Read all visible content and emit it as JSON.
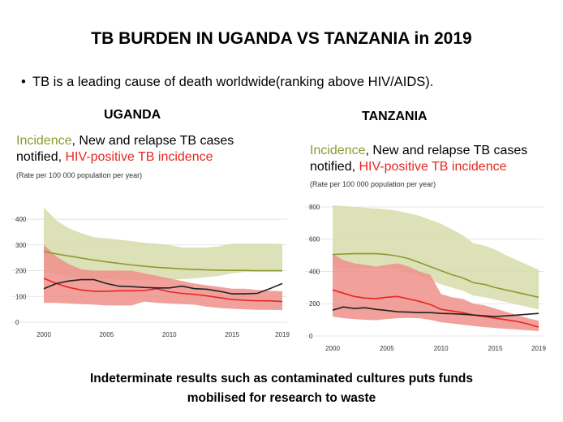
{
  "slide": {
    "title": "TB BURDEN IN UGANDA VS TANZANIA in 2019",
    "bullet": "TB is a leading cause of death worldwide(ranking above HIV/AIDS).",
    "footer_line1": "Indeterminate results such as contaminated cultures puts funds",
    "footer_line2": "mobilised for research to waste"
  },
  "legend": {
    "incidence": "Incidence",
    "middle": ", New and relapse TB cases",
    "notified": "notified, ",
    "hiv": "HIV-positive TB incidence",
    "rate": "(Rate per 100 000 population per year)"
  },
  "colors": {
    "incidence_band": "#d6dcaa",
    "incidence_line": "#8a9a2e",
    "hiv_band": "#ef8f8b",
    "hiv_line": "#e8261f",
    "notified_line": "#222222",
    "axis_text": "#333333"
  },
  "chart_data": [
    {
      "type": "line",
      "title": "UGANDA",
      "x": [
        2000,
        2001,
        2002,
        2003,
        2004,
        2005,
        2006,
        2007,
        2008,
        2009,
        2010,
        2011,
        2012,
        2013,
        2014,
        2015,
        2016,
        2017,
        2018,
        2019
      ],
      "xticks": [
        2000,
        2005,
        2010,
        2015,
        2019
      ],
      "yticks": [
        0,
        100,
        200,
        300,
        400
      ],
      "ylim": [
        0,
        460
      ],
      "series": [
        {
          "name": "Incidence",
          "values": [
            275,
            265,
            257,
            249,
            241,
            234,
            228,
            222,
            217,
            213,
            210,
            207,
            205,
            203,
            202,
            201,
            201,
            200,
            200,
            200
          ],
          "lower": [
            195,
            185,
            178,
            173,
            170,
            167,
            166,
            165,
            165,
            165,
            165,
            167,
            170,
            175,
            180,
            190,
            195,
            195,
            195,
            195
          ],
          "upper": [
            445,
            395,
            365,
            345,
            330,
            325,
            320,
            315,
            308,
            305,
            300,
            290,
            290,
            290,
            295,
            305,
            305,
            305,
            305,
            303
          ]
        },
        {
          "name": "New and relapse TB cases notified",
          "values": [
            130,
            150,
            160,
            165,
            165,
            150,
            140,
            138,
            135,
            133,
            133,
            140,
            130,
            128,
            120,
            110,
            110,
            112,
            130,
            150
          ]
        },
        {
          "name": "HIV-positive TB incidence",
          "values": [
            170,
            150,
            135,
            125,
            120,
            120,
            122,
            122,
            123,
            130,
            118,
            112,
            108,
            102,
            95,
            88,
            85,
            83,
            83,
            80
          ],
          "lower": [
            75,
            75,
            72,
            70,
            68,
            65,
            65,
            65,
            80,
            75,
            72,
            70,
            68,
            60,
            55,
            52,
            50,
            48,
            48,
            47
          ],
          "upper": [
            300,
            255,
            225,
            205,
            200,
            200,
            200,
            200,
            190,
            180,
            170,
            160,
            150,
            143,
            137,
            130,
            130,
            125,
            122,
            120
          ]
        }
      ]
    },
    {
      "type": "line",
      "title": "TANZANIA",
      "x": [
        2000,
        2001,
        2002,
        2003,
        2004,
        2005,
        2006,
        2007,
        2008,
        2009,
        2010,
        2011,
        2012,
        2013,
        2014,
        2015,
        2016,
        2017,
        2018,
        2019
      ],
      "xticks": [
        2000,
        2005,
        2010,
        2015,
        2019
      ],
      "yticks": [
        0,
        200,
        400,
        600,
        800
      ],
      "ylim": [
        0,
        830
      ],
      "series": [
        {
          "name": "Incidence",
          "values": [
            505,
            508,
            510,
            510,
            510,
            505,
            495,
            480,
            455,
            430,
            405,
            380,
            360,
            330,
            320,
            300,
            285,
            270,
            255,
            240
          ],
          "lower": [
            420,
            420,
            420,
            420,
            420,
            418,
            410,
            395,
            370,
            345,
            320,
            300,
            280,
            250,
            240,
            225,
            210,
            195,
            180,
            165
          ],
          "upper": [
            810,
            805,
            800,
            795,
            790,
            785,
            775,
            760,
            745,
            720,
            695,
            660,
            625,
            575,
            560,
            535,
            500,
            470,
            440,
            410
          ]
        },
        {
          "name": "New and relapse TB cases notified",
          "values": [
            160,
            180,
            170,
            175,
            165,
            158,
            150,
            148,
            145,
            145,
            140,
            138,
            135,
            130,
            125,
            120,
            125,
            130,
            135,
            140
          ]
        },
        {
          "name": "HIV-positive TB incidence",
          "values": [
            285,
            265,
            245,
            235,
            232,
            240,
            245,
            230,
            215,
            195,
            165,
            155,
            145,
            130,
            120,
            110,
            100,
            90,
            75,
            55
          ],
          "lower": [
            120,
            110,
            105,
            100,
            98,
            105,
            110,
            112,
            110,
            100,
            85,
            78,
            70,
            62,
            55,
            50,
            45,
            40,
            35,
            30
          ],
          "upper": [
            510,
            470,
            450,
            440,
            430,
            440,
            450,
            430,
            400,
            380,
            260,
            240,
            230,
            200,
            190,
            170,
            150,
            130,
            110,
            95
          ]
        }
      ]
    }
  ]
}
